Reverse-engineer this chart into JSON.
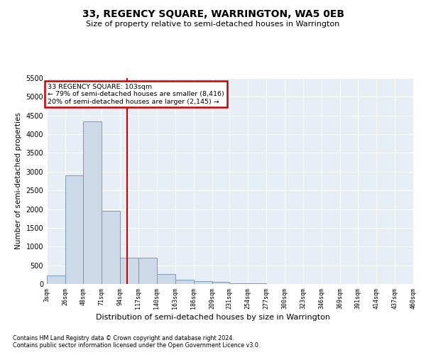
{
  "title": "33, REGENCY SQUARE, WARRINGTON, WA5 0EB",
  "subtitle": "Size of property relative to semi-detached houses in Warrington",
  "xlabel": "Distribution of semi-detached houses by size in Warrington",
  "ylabel": "Number of semi-detached properties",
  "footnote1": "Contains HM Land Registry data © Crown copyright and database right 2024.",
  "footnote2": "Contains public sector information licensed under the Open Government Licence v3.0.",
  "annotation_title": "33 REGENCY SQUARE: 103sqm",
  "annotation_line1": "← 79% of semi-detached houses are smaller (8,416)",
  "annotation_line2": "20% of semi-detached houses are larger (2,145) →",
  "property_size": 103,
  "bar_color": "#ccd9e8",
  "bar_edge_color": "#7799bb",
  "vline_color": "#cc0000",
  "annotation_border_color": "#cc0000",
  "categories": [
    "3sqm",
    "26sqm",
    "48sqm",
    "71sqm",
    "94sqm",
    "117sqm",
    "140sqm",
    "163sqm",
    "186sqm",
    "209sqm",
    "231sqm",
    "254sqm",
    "277sqm",
    "300sqm",
    "323sqm",
    "346sqm",
    "369sqm",
    "391sqm",
    "414sqm",
    "437sqm",
    "460sqm"
  ],
  "bin_edges": [
    3,
    26,
    48,
    71,
    94,
    117,
    140,
    163,
    186,
    209,
    231,
    254,
    277,
    300,
    323,
    346,
    369,
    391,
    414,
    437,
    460
  ],
  "bar_heights": [
    230,
    2900,
    4350,
    1950,
    710,
    710,
    260,
    110,
    70,
    50,
    20,
    10,
    5,
    3,
    2,
    1,
    0,
    0,
    0,
    0
  ],
  "ylim": [
    0,
    5500
  ],
  "yticks": [
    0,
    500,
    1000,
    1500,
    2000,
    2500,
    3000,
    3500,
    4000,
    4500,
    5000,
    5500
  ],
  "grid_color": "#ffffff",
  "bg_color": "#e8eef5"
}
